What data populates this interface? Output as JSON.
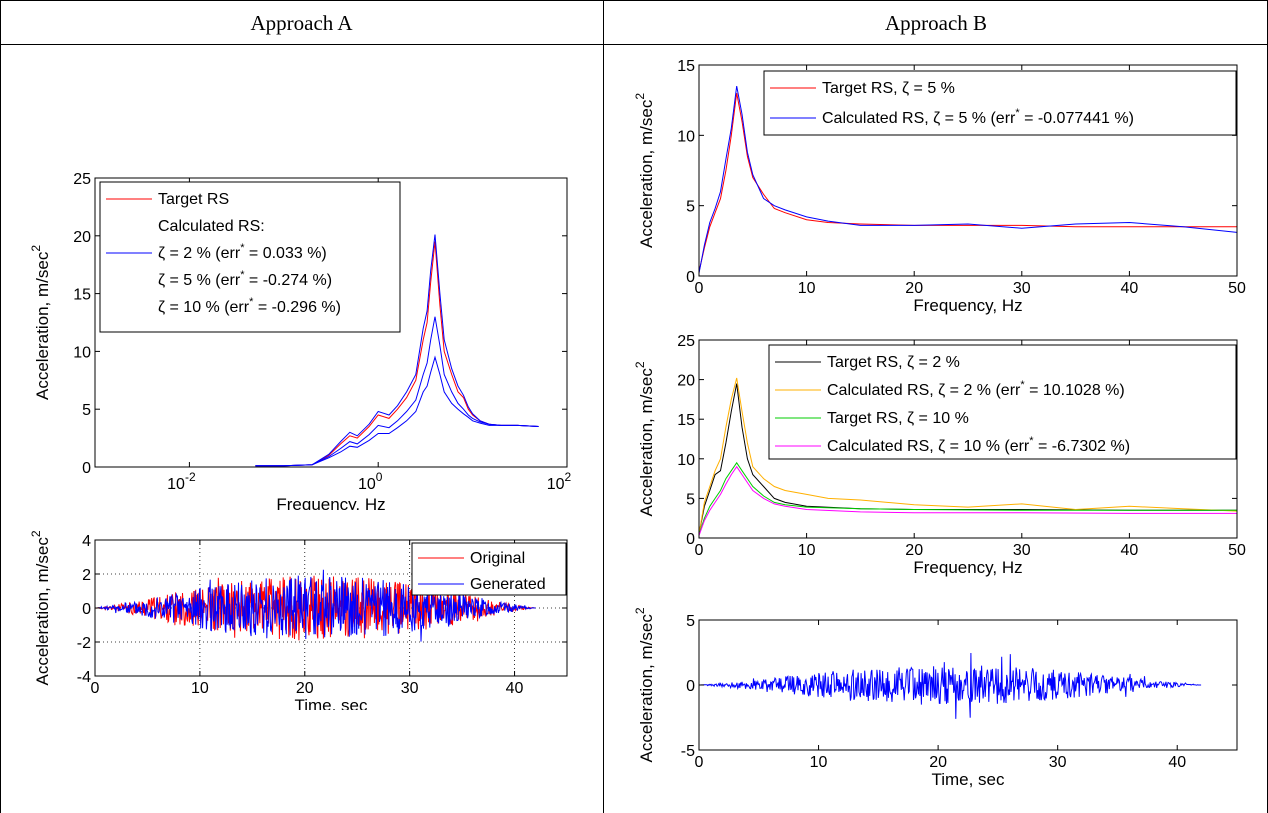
{
  "headers": {
    "a": "Approach A",
    "b": "Approach B"
  },
  "charts": {
    "a_rs": {
      "type": "line",
      "xscale": "log",
      "xlim": [
        0.001,
        100
      ],
      "ylim": [
        0,
        25
      ],
      "xticks": [
        0.01,
        1,
        100
      ],
      "xtick_labels": [
        {
          "base": "10",
          "exp": "-2"
        },
        {
          "base": "10",
          "exp": "0"
        },
        {
          "base": "10",
          "exp": "2"
        }
      ],
      "yticks": [
        0,
        5,
        10,
        15,
        20,
        25
      ],
      "xlabel": "Frequency, Hz",
      "ylabel": "Acceleration, m/sec",
      "ylabel_exp": "2",
      "legend": {
        "entries": [
          {
            "label": "Target RS",
            "color": "#ff0000",
            "line": true
          },
          {
            "label": "Calculated RS:",
            "color": "",
            "line": false
          },
          {
            "label": "ζ = 2 % (err",
            "sup": "*",
            "tail": " = 0.033 %)",
            "color": "#0000ff",
            "line": true
          },
          {
            "label": "ζ = 5 % (err",
            "sup": "*",
            "tail": " = -0.274 %)",
            "color": "",
            "line": false
          },
          {
            "label": "ζ = 10 % (err",
            "sup": "*",
            "tail": " = -0.296 %)",
            "color": "",
            "line": false
          }
        ]
      },
      "series": [
        {
          "color": "#ff0000",
          "x": [
            0.05,
            0.1,
            0.2,
            0.3,
            0.4,
            0.5,
            0.6,
            0.8,
            1,
            1.3,
            1.6,
            2,
            2.5,
            3,
            3.3,
            3.6,
            4,
            4.5,
            5,
            6,
            7,
            8,
            9,
            10,
            12,
            15,
            20,
            30,
            50
          ],
          "y": [
            0.1,
            0.1,
            0.2,
            1.0,
            2.0,
            2.7,
            2.5,
            3.5,
            4.5,
            4.2,
            5.0,
            6.0,
            7.5,
            11.0,
            12.5,
            16.0,
            19.5,
            14.0,
            10.0,
            8.0,
            6.5,
            6.0,
            5.0,
            4.5,
            4.0,
            3.7,
            3.6,
            3.6,
            3.5
          ]
        },
        {
          "color": "#0000ff",
          "x": [
            0.05,
            0.1,
            0.2,
            0.3,
            0.4,
            0.5,
            0.6,
            0.8,
            1,
            1.3,
            1.6,
            2,
            2.5,
            3,
            3.3,
            3.6,
            4,
            4.5,
            5,
            6,
            7,
            8,
            9,
            10,
            12,
            15,
            20,
            30,
            50
          ],
          "y": [
            0.1,
            0.1,
            0.2,
            1.1,
            2.2,
            3.0,
            2.7,
            3.7,
            4.8,
            4.5,
            5.3,
            6.5,
            8.0,
            12.0,
            13.5,
            17.0,
            20.1,
            15.0,
            11.0,
            8.5,
            7.0,
            6.2,
            5.2,
            4.6,
            4.0,
            3.7,
            3.6,
            3.6,
            3.5
          ]
        },
        {
          "color": "#0000ff",
          "x": [
            0.05,
            0.1,
            0.2,
            0.3,
            0.4,
            0.5,
            0.6,
            0.8,
            1,
            1.3,
            1.6,
            2,
            2.5,
            3,
            3.3,
            3.6,
            4,
            4.5,
            5,
            6,
            7,
            8,
            9,
            10,
            12,
            15,
            20,
            30,
            50
          ],
          "y": [
            0.1,
            0.1,
            0.2,
            0.9,
            1.6,
            2.2,
            2.0,
            2.8,
            3.6,
            3.4,
            4.0,
            4.8,
            5.8,
            8.0,
            9.0,
            11.0,
            13.0,
            10.5,
            8.0,
            6.5,
            5.5,
            5.0,
            4.5,
            4.2,
            3.9,
            3.7,
            3.6,
            3.6,
            3.5
          ]
        },
        {
          "color": "#0000ff",
          "x": [
            0.05,
            0.1,
            0.2,
            0.3,
            0.4,
            0.5,
            0.6,
            0.8,
            1,
            1.3,
            1.6,
            2,
            2.5,
            3,
            3.3,
            3.6,
            4,
            4.5,
            5,
            6,
            7,
            8,
            9,
            10,
            12,
            15,
            20,
            30,
            50
          ],
          "y": [
            0.1,
            0.1,
            0.2,
            0.8,
            1.3,
            1.8,
            1.7,
            2.3,
            2.9,
            2.9,
            3.4,
            4.0,
            4.8,
            6.5,
            7.0,
            8.2,
            9.5,
            8.0,
            6.5,
            5.5,
            5.0,
            4.6,
            4.3,
            4.0,
            3.8,
            3.6,
            3.6,
            3.6,
            3.5
          ]
        }
      ]
    },
    "a_time": {
      "type": "line",
      "xlim": [
        0,
        45
      ],
      "ylim": [
        -4,
        4
      ],
      "xticks": [
        0,
        10,
        20,
        30,
        40
      ],
      "yticks": [
        -4,
        -2,
        0,
        2,
        4
      ],
      "grid": true,
      "xlabel": "Time, sec",
      "ylabel": "Acceleration, m/sec",
      "ylabel_exp": "2",
      "legend": {
        "entries": [
          {
            "label": "Original",
            "color": "#ff0000",
            "line": true
          },
          {
            "label": "Generated",
            "color": "#0000ff",
            "line": true
          }
        ]
      },
      "series": [
        {
          "color": "#ff0000",
          "t_end": 42,
          "peak": 3.5,
          "seed": 11
        },
        {
          "color": "#0000ff",
          "t_end": 42,
          "peak": 3.5,
          "seed": 23
        }
      ]
    },
    "b_rs5": {
      "type": "line",
      "xlim": [
        0,
        50
      ],
      "ylim": [
        0,
        15
      ],
      "xticks": [
        0,
        10,
        20,
        30,
        40,
        50
      ],
      "yticks": [
        0,
        5,
        10,
        15
      ],
      "xlabel": "Frequency, Hz",
      "ylabel": "Acceleration, m/sec",
      "ylabel_exp": "2",
      "legend": {
        "entries": [
          {
            "label": "Target RS, ζ = 5 %",
            "color": "#ff0000",
            "line": true
          },
          {
            "label": "Calculated RS, ζ = 5 % (err",
            "sup": "*",
            "tail": " = -0.077441 %)",
            "color": "#0000ff",
            "line": true
          }
        ]
      },
      "series": [
        {
          "color": "#ff0000",
          "x": [
            0,
            0.5,
            1,
            1.5,
            2,
            2.5,
            3,
            3.5,
            4,
            4.5,
            5,
            6,
            7,
            8,
            10,
            12,
            15,
            20,
            25,
            30,
            35,
            40,
            45,
            50
          ],
          "y": [
            0.3,
            2.0,
            3.5,
            4.5,
            5.5,
            7.5,
            10.0,
            13.0,
            11.0,
            8.5,
            7.0,
            5.8,
            4.8,
            4.5,
            4.0,
            3.8,
            3.7,
            3.6,
            3.6,
            3.6,
            3.5,
            3.5,
            3.5,
            3.5
          ]
        },
        {
          "color": "#0000ff",
          "x": [
            0,
            0.5,
            1,
            1.5,
            2,
            2.5,
            3,
            3.5,
            4,
            4.5,
            5,
            6,
            7,
            8,
            10,
            12,
            15,
            20,
            25,
            30,
            35,
            40,
            45,
            50
          ],
          "y": [
            0.2,
            2.2,
            3.8,
            4.8,
            6.0,
            8.3,
            10.5,
            13.5,
            11.5,
            8.8,
            7.2,
            5.5,
            5.0,
            4.7,
            4.2,
            3.9,
            3.6,
            3.6,
            3.7,
            3.4,
            3.7,
            3.8,
            3.5,
            3.1
          ]
        }
      ]
    },
    "b_rs_multi": {
      "type": "line",
      "xlim": [
        0,
        50
      ],
      "ylim": [
        0,
        25
      ],
      "xticks": [
        0,
        10,
        20,
        30,
        40,
        50
      ],
      "yticks": [
        0,
        5,
        10,
        15,
        20,
        25
      ],
      "xlabel": "Frequency, Hz",
      "ylabel": "Acceleration, m/sec",
      "ylabel_exp": "2",
      "legend": {
        "entries": [
          {
            "label": "Target RS, ζ = 2 %",
            "color": "#000000",
            "line": true
          },
          {
            "label": "Calculated RS, ζ = 2 % (err",
            "sup": "*",
            "tail": " = 10.1028 %)",
            "color": "#ffb000",
            "line": true
          },
          {
            "label": "Target RS, ζ = 10 %",
            "color": "#00cc00",
            "line": true
          },
          {
            "label": "Calculated RS, ζ = 10 % (err",
            "sup": "*",
            "tail": " = -6.7302 %)",
            "color": "#ff00ff",
            "line": true
          }
        ]
      },
      "series": [
        {
          "color": "#000000",
          "x": [
            0,
            0.5,
            1,
            1.5,
            2,
            2.5,
            3,
            3.5,
            4,
            4.5,
            5,
            6,
            7,
            8,
            10,
            15,
            20,
            30,
            40,
            50
          ],
          "y": [
            0.5,
            4.0,
            6.0,
            8.0,
            8.5,
            12.0,
            16.0,
            19.5,
            14.0,
            10.0,
            8.0,
            6.5,
            5.0,
            4.5,
            4.0,
            3.7,
            3.6,
            3.6,
            3.5,
            3.5
          ]
        },
        {
          "color": "#ffb000",
          "x": [
            0,
            0.5,
            1,
            1.5,
            2,
            2.5,
            3,
            3.5,
            4,
            4.5,
            5,
            6,
            7,
            8,
            10,
            12,
            15,
            20,
            25,
            30,
            35,
            40,
            45,
            50
          ],
          "y": [
            0.5,
            4.5,
            6.5,
            8.5,
            10.0,
            14.0,
            17.5,
            20.2,
            16.0,
            12.0,
            9.0,
            7.5,
            6.5,
            6.0,
            5.5,
            5.0,
            4.8,
            4.2,
            3.9,
            4.3,
            3.6,
            4.0,
            3.7,
            3.4
          ]
        },
        {
          "color": "#00cc00",
          "x": [
            0,
            0.5,
            1,
            1.5,
            2,
            2.5,
            3,
            3.5,
            4,
            4.5,
            5,
            6,
            7,
            8,
            10,
            15,
            20,
            30,
            40,
            50
          ],
          "y": [
            0.4,
            2.5,
            4.0,
            5.0,
            6.0,
            7.5,
            8.5,
            9.5,
            8.5,
            7.5,
            6.5,
            5.3,
            4.5,
            4.2,
            3.9,
            3.7,
            3.6,
            3.5,
            3.5,
            3.5
          ]
        },
        {
          "color": "#ff00ff",
          "x": [
            0,
            0.5,
            1,
            1.5,
            2,
            2.5,
            3,
            3.5,
            4,
            4.5,
            5,
            6,
            7,
            8,
            10,
            15,
            20,
            30,
            40,
            50
          ],
          "y": [
            0.3,
            2.2,
            3.5,
            4.5,
            5.5,
            6.8,
            8.0,
            9.0,
            8.0,
            7.0,
            6.0,
            5.0,
            4.3,
            4.0,
            3.6,
            3.3,
            3.2,
            3.2,
            3.1,
            3.1
          ]
        }
      ]
    },
    "b_time": {
      "type": "line",
      "xlim": [
        0,
        45
      ],
      "ylim": [
        -5,
        5
      ],
      "xticks": [
        0,
        10,
        20,
        30,
        40
      ],
      "yticks": [
        -5,
        0,
        5
      ],
      "xlabel": "Time, sec",
      "ylabel": "Acceleration, m/sec",
      "ylabel_exp": "2",
      "series": [
        {
          "color": "#0000ff",
          "t_end": 42,
          "peak": 2.8,
          "seed": 37
        }
      ]
    }
  }
}
